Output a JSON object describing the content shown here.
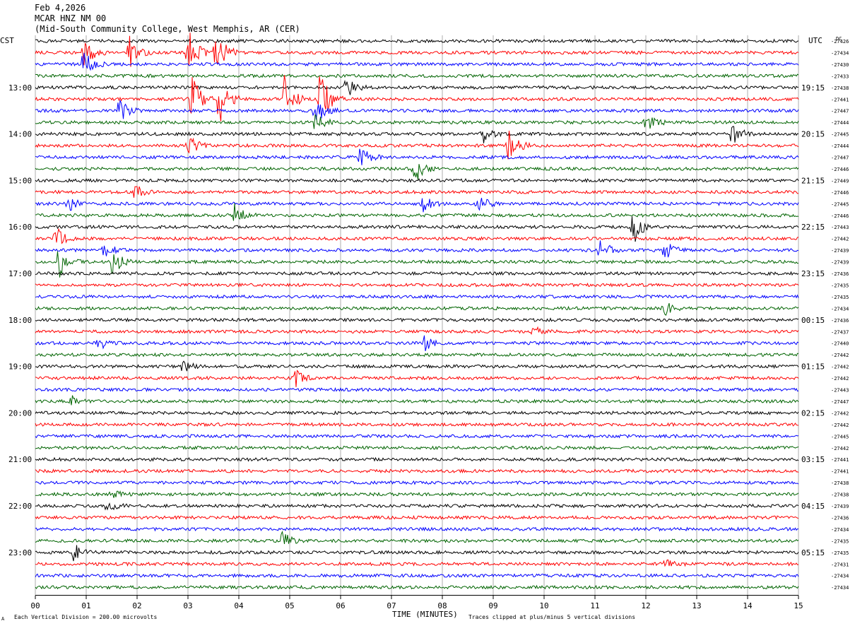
{
  "header": {
    "date": "Feb 4,2026",
    "station": "MCAR HNZ NM 00",
    "site": "(Mid-South Community College, West Memphis, AR (CER)"
  },
  "axes": {
    "left_tz": "CST",
    "right_tz": "UTC",
    "dc_label": "DC",
    "xlabel": "TIME (MINUTES)",
    "scale_note": "Each Vertical Division =  200.00 microvolts",
    "clip_note": "Traces clipped at plus/minus 5 vertical divisions",
    "corner_mark": "A"
  },
  "chart_data": {
    "type": "line",
    "x_ticks": [
      "00",
      "01",
      "02",
      "03",
      "04",
      "05",
      "06",
      "07",
      "08",
      "09",
      "10",
      "11",
      "12",
      "13",
      "14",
      "15"
    ],
    "xlim": [
      0,
      15
    ],
    "left_hour_labels": [
      "13:00",
      "14:00",
      "15:00",
      "16:00",
      "17:00",
      "18:00",
      "19:00",
      "20:00",
      "21:00",
      "22:00",
      "23:00"
    ],
    "right_hour_labels": [
      "19:15",
      "20:15",
      "21:15",
      "22:15",
      "23:15",
      "00:15",
      "01:15",
      "02:15",
      "03:15",
      "04:15",
      "05:15"
    ],
    "trace_colors": [
      "#000000",
      "#ff0000",
      "#0000ff",
      "#006400"
    ],
    "dc_offsets": [
      "-27426",
      "-27434",
      "-27430",
      "-27433",
      "-27438",
      "-27441",
      "-27447",
      "-27444",
      "-27445",
      "-27444",
      "-27447",
      "-27446",
      "-27449",
      "-27446",
      "-27445",
      "-27446",
      "-27443",
      "-27442",
      "-27439",
      "-27439",
      "-27436",
      "-27435",
      "-27435",
      "-27434",
      "-27436",
      "-27437",
      "-27440",
      "-27442",
      "-27442",
      "-27442",
      "-27443",
      "-27447",
      "-27442",
      "-27442",
      "-27445",
      "-27442",
      "-27441",
      "-27441",
      "-27438",
      "-27438",
      "-27439",
      "-27436",
      "-27434",
      "-27435",
      "-27435",
      "-27431",
      "-27434",
      "-27434"
    ],
    "traces_count": 48,
    "events": [
      {
        "trace": 1,
        "minute": 0.95,
        "amp": 3.0
      },
      {
        "trace": 2,
        "minute": 0.95,
        "amp": 2.5
      },
      {
        "trace": 1,
        "minute": 1.85,
        "amp": 2.5
      },
      {
        "trace": 1,
        "minute": 3.0,
        "amp": 5
      },
      {
        "trace": 1,
        "minute": 3.55,
        "amp": 5
      },
      {
        "trace": 4,
        "minute": 6.1,
        "amp": 1.8
      },
      {
        "trace": 5,
        "minute": 3.05,
        "amp": 5
      },
      {
        "trace": 5,
        "minute": 3.6,
        "amp": 5
      },
      {
        "trace": 5,
        "minute": 4.9,
        "amp": 4
      },
      {
        "trace": 5,
        "minute": 5.6,
        "amp": 5
      },
      {
        "trace": 6,
        "minute": 1.65,
        "amp": 2
      },
      {
        "trace": 6,
        "minute": 5.5,
        "amp": 2.5
      },
      {
        "trace": 7,
        "minute": 5.5,
        "amp": 1.8
      },
      {
        "trace": 7,
        "minute": 12.0,
        "amp": 1.8
      },
      {
        "trace": 8,
        "minute": 8.8,
        "amp": 1.5
      },
      {
        "trace": 8,
        "minute": 13.7,
        "amp": 2
      },
      {
        "trace": 9,
        "minute": 3.0,
        "amp": 2.5
      },
      {
        "trace": 9,
        "minute": 9.3,
        "amp": 3
      },
      {
        "trace": 10,
        "minute": 6.4,
        "amp": 2
      },
      {
        "trace": 11,
        "minute": 7.45,
        "amp": 2.5
      },
      {
        "trace": 13,
        "minute": 1.95,
        "amp": 1.2
      },
      {
        "trace": 14,
        "minute": 0.65,
        "amp": 1.3
      },
      {
        "trace": 14,
        "minute": 7.6,
        "amp": 1.8
      },
      {
        "trace": 14,
        "minute": 8.7,
        "amp": 1.5
      },
      {
        "trace": 15,
        "minute": 3.9,
        "amp": 2
      },
      {
        "trace": 16,
        "minute": 11.75,
        "amp": 3
      },
      {
        "trace": 17,
        "minute": 0.4,
        "amp": 2
      },
      {
        "trace": 18,
        "minute": 1.35,
        "amp": 1.5
      },
      {
        "trace": 18,
        "minute": 11.1,
        "amp": 2
      },
      {
        "trace": 18,
        "minute": 12.35,
        "amp": 2
      },
      {
        "trace": 19,
        "minute": 0.45,
        "amp": 3
      },
      {
        "trace": 19,
        "minute": 1.5,
        "amp": 2.5
      },
      {
        "trace": 23,
        "minute": 12.35,
        "amp": 1.5
      },
      {
        "trace": 25,
        "minute": 9.8,
        "amp": 0.9
      },
      {
        "trace": 26,
        "minute": 1.25,
        "amp": 1
      },
      {
        "trace": 26,
        "minute": 7.65,
        "amp": 1.2
      },
      {
        "trace": 28,
        "minute": 2.9,
        "amp": 1
      },
      {
        "trace": 29,
        "minute": 5.1,
        "amp": 1.5
      },
      {
        "trace": 31,
        "minute": 0.7,
        "amp": 1
      },
      {
        "trace": 39,
        "minute": 1.45,
        "amp": 1
      },
      {
        "trace": 40,
        "minute": 1.4,
        "amp": 1
      },
      {
        "trace": 43,
        "minute": 4.85,
        "amp": 1.5
      },
      {
        "trace": 44,
        "minute": 0.75,
        "amp": 1.5
      },
      {
        "trace": 45,
        "minute": 12.35,
        "amp": 0.9
      }
    ]
  }
}
